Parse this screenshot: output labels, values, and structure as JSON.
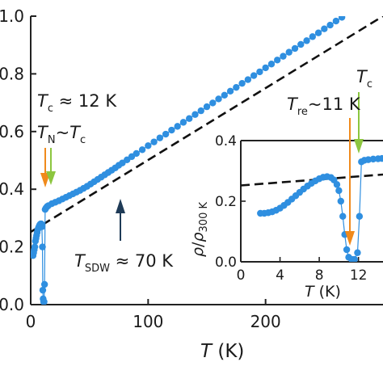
{
  "chart_data": {
    "type": "scatter",
    "main": {
      "xlabel": {
        "symbol": "T",
        "unit": " (K)"
      },
      "ylabel": "",
      "xlim": [
        0,
        300
      ],
      "ylim": [
        0,
        1.0
      ],
      "x_ticks": [
        0,
        100,
        200
      ],
      "y_ticks": [
        {
          "value": 0.0,
          "label": "0.0"
        },
        {
          "value": 0.2,
          "label": "0.2"
        },
        {
          "value": 0.4,
          "label": "0.4"
        },
        {
          "value": 0.6,
          "label": "0.6"
        },
        {
          "value": 0.8,
          "label": "0.8"
        },
        {
          "value": 1.0,
          "label": "1.0"
        }
      ],
      "data": [
        [
          2,
          0.17
        ],
        [
          2.5,
          0.18
        ],
        [
          3,
          0.19
        ],
        [
          3.5,
          0.2
        ],
        [
          4,
          0.22
        ],
        [
          4.5,
          0.23
        ],
        [
          5,
          0.24
        ],
        [
          5.5,
          0.25
        ],
        [
          6,
          0.26
        ],
        [
          6.5,
          0.265
        ],
        [
          7,
          0.27
        ],
        [
          7.5,
          0.275
        ],
        [
          8,
          0.278
        ],
        [
          8.5,
          0.28
        ],
        [
          9,
          0.28
        ],
        [
          9.5,
          0.27
        ],
        [
          10,
          0.2
        ],
        [
          10.3,
          0.05
        ],
        [
          10.6,
          0.02
        ],
        [
          11,
          0.01
        ],
        [
          11.4,
          0.01
        ],
        [
          11.8,
          0.07
        ],
        [
          12.3,
          0.33
        ],
        [
          13,
          0.335
        ],
        [
          14,
          0.34
        ],
        [
          15,
          0.343
        ],
        [
          18,
          0.35
        ],
        [
          21,
          0.355
        ],
        [
          24,
          0.36
        ],
        [
          27,
          0.366
        ],
        [
          30,
          0.372
        ],
        [
          33,
          0.378
        ],
        [
          36,
          0.384
        ],
        [
          39,
          0.39
        ],
        [
          42,
          0.396
        ],
        [
          45,
          0.403
        ],
        [
          48,
          0.41
        ],
        [
          51,
          0.418
        ],
        [
          54,
          0.426
        ],
        [
          57,
          0.434
        ],
        [
          60,
          0.442
        ],
        [
          63,
          0.45
        ],
        [
          66,
          0.458
        ],
        [
          69,
          0.466
        ],
        [
          72,
          0.474
        ],
        [
          75,
          0.483
        ],
        [
          78,
          0.491
        ],
        [
          82,
          0.502
        ],
        [
          86,
          0.513
        ],
        [
          90,
          0.524
        ],
        [
          95,
          0.537
        ],
        [
          100,
          0.551
        ],
        [
          105,
          0.564
        ],
        [
          110,
          0.578
        ],
        [
          115,
          0.591
        ],
        [
          120,
          0.605
        ],
        [
          125,
          0.618
        ],
        [
          130,
          0.632
        ],
        [
          135,
          0.645
        ],
        [
          140,
          0.659
        ],
        [
          145,
          0.672
        ],
        [
          150,
          0.686
        ],
        [
          155,
          0.699
        ],
        [
          160,
          0.713
        ],
        [
          165,
          0.726
        ],
        [
          170,
          0.74
        ],
        [
          175,
          0.753
        ],
        [
          180,
          0.767
        ],
        [
          185,
          0.78
        ],
        [
          190,
          0.794
        ],
        [
          195,
          0.807
        ],
        [
          200,
          0.821
        ],
        [
          205,
          0.834
        ],
        [
          210,
          0.848
        ],
        [
          215,
          0.861
        ],
        [
          220,
          0.875
        ],
        [
          225,
          0.888
        ],
        [
          230,
          0.902
        ],
        [
          235,
          0.915
        ],
        [
          240,
          0.929
        ],
        [
          245,
          0.942
        ],
        [
          250,
          0.956
        ],
        [
          255,
          0.969
        ],
        [
          260,
          0.983
        ],
        [
          265,
          0.996
        ]
      ],
      "fit_line": [
        [
          0,
          0.252
        ],
        [
          300,
          1.0
        ]
      ]
    },
    "inset": {
      "xlabel": {
        "symbol": "T",
        "unit": " (K)"
      },
      "ylabel": {
        "rho": "ρ",
        "sep": "/",
        "rho2": "ρ",
        "sub": "300 K"
      },
      "xlim": [
        0,
        14.5
      ],
      "ylim": [
        0,
        0.4
      ],
      "x_ticks": [
        {
          "value": 0,
          "label": "0"
        },
        {
          "value": 4,
          "label": "4"
        },
        {
          "value": 8,
          "label": "8"
        },
        {
          "value": 12,
          "label": "12"
        }
      ],
      "y_ticks": [
        {
          "value": 0.0,
          "label": "0.0"
        },
        {
          "value": 0.2,
          "label": "0.2"
        },
        {
          "value": 0.4,
          "label": "0.4"
        }
      ],
      "data": [
        [
          2.0,
          0.16
        ],
        [
          2.4,
          0.16
        ],
        [
          2.8,
          0.162
        ],
        [
          3.2,
          0.165
        ],
        [
          3.6,
          0.17
        ],
        [
          4.0,
          0.177
        ],
        [
          4.4,
          0.186
        ],
        [
          4.8,
          0.196
        ],
        [
          5.2,
          0.207
        ],
        [
          5.6,
          0.218
        ],
        [
          6.0,
          0.229
        ],
        [
          6.4,
          0.24
        ],
        [
          6.8,
          0.25
        ],
        [
          7.2,
          0.259
        ],
        [
          7.6,
          0.267
        ],
        [
          8.0,
          0.274
        ],
        [
          8.4,
          0.279
        ],
        [
          8.8,
          0.281
        ],
        [
          9.2,
          0.278
        ],
        [
          9.5,
          0.27
        ],
        [
          9.8,
          0.255
        ],
        [
          10.0,
          0.235
        ],
        [
          10.2,
          0.2
        ],
        [
          10.4,
          0.15
        ],
        [
          10.6,
          0.09
        ],
        [
          10.8,
          0.04
        ],
        [
          11.0,
          0.015
        ],
        [
          11.3,
          0.008
        ],
        [
          11.6,
          0.008
        ],
        [
          11.9,
          0.03
        ],
        [
          12.1,
          0.15
        ],
        [
          12.3,
          0.33
        ],
        [
          12.6,
          0.335
        ],
        [
          13.0,
          0.337
        ],
        [
          13.5,
          0.339
        ],
        [
          14.0,
          0.34
        ],
        [
          14.4,
          0.341
        ]
      ],
      "fit_line": [
        [
          0,
          0.252
        ],
        [
          14.5,
          0.288
        ]
      ]
    },
    "annotations": {
      "tc_main": {
        "symbol": "T",
        "sub": "c",
        "text": " ≈ 12 K"
      },
      "tn_main": {
        "symbol": "T",
        "sub": "N",
        "tilde": "~",
        "symbol2": "T",
        "sub2": "c"
      },
      "tsdw": {
        "symbol": "T",
        "sub": "SDW",
        "text": " ≈ 70 K"
      },
      "tre_inset": {
        "symbol": "T",
        "sub": "re",
        "text": "~11 K"
      },
      "tc_inset": {
        "symbol": "T",
        "sub": "c"
      }
    },
    "colors": {
      "data": "#2f8fe0",
      "fit": "#111111",
      "arrow_orange": "#f08a1c",
      "arrow_green": "#8cc63f",
      "arrow_navy": "#1f3b57"
    }
  }
}
